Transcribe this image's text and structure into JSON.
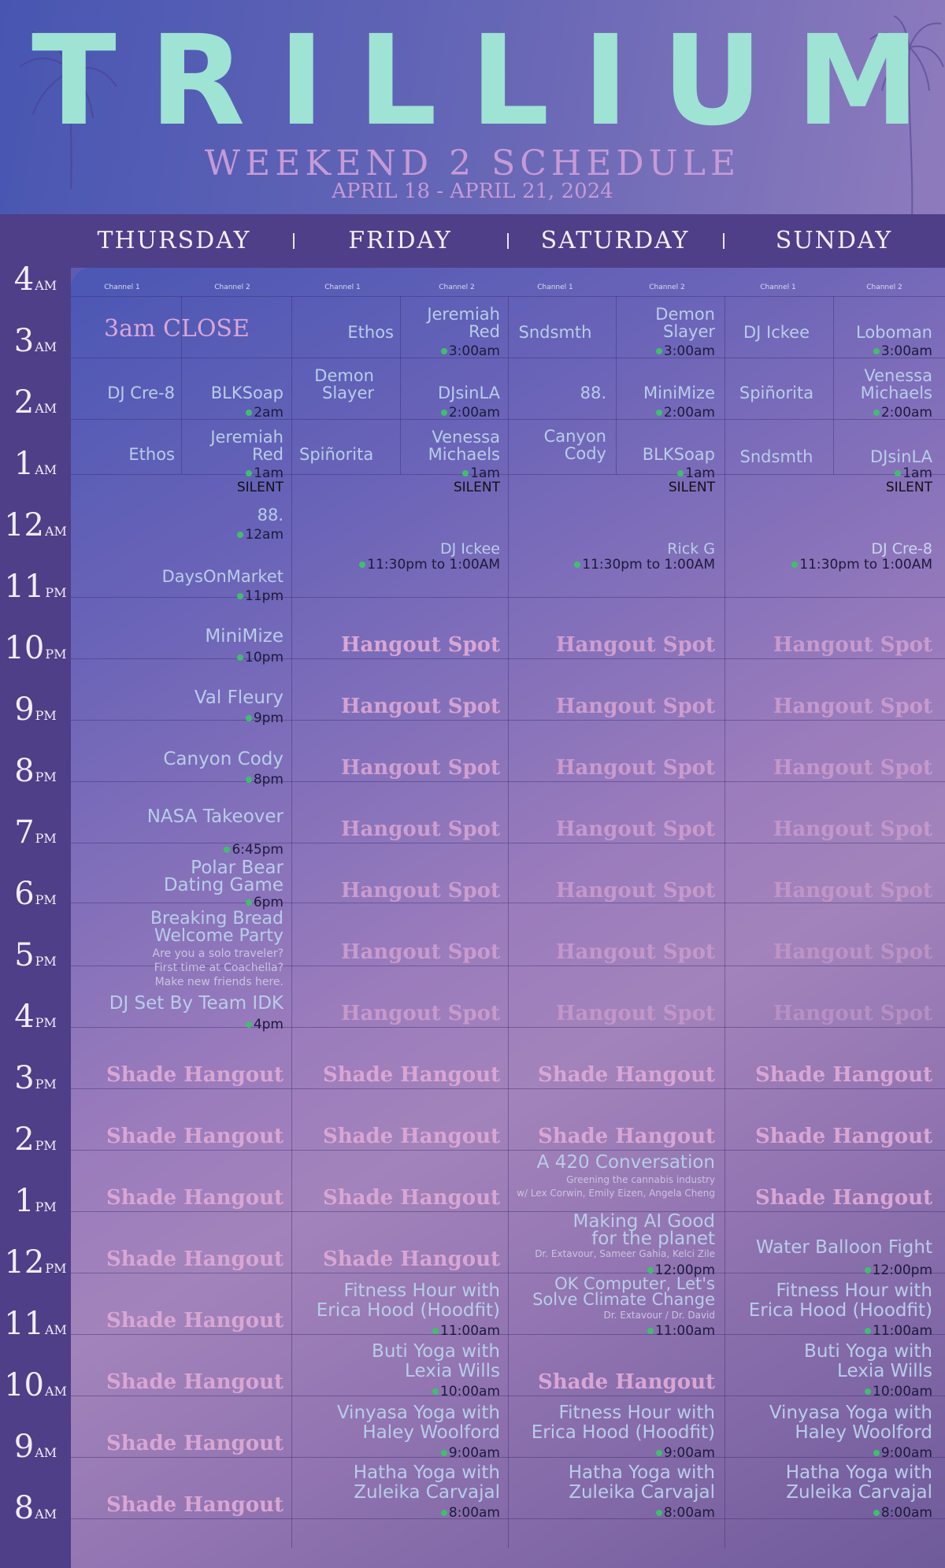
{
  "header": {
    "title": "TRILLIUM",
    "subtitle": "WEEKEND 2 SCHEDULE",
    "dates": "APRIL 18 - APRIL 21, 2024"
  },
  "days": [
    "THURSDAY",
    "FRIDAY",
    "SATURDAY",
    "SUNDAY"
  ],
  "channel_labels": [
    "Channel 1",
    "Channel 2"
  ],
  "hours": [
    {
      "n": "4",
      "ap": "AM"
    },
    {
      "n": "3",
      "ap": "AM"
    },
    {
      "n": "2",
      "ap": "AM"
    },
    {
      "n": "1",
      "ap": "AM"
    },
    {
      "n": "12",
      "ap": "AM"
    },
    {
      "n": "11",
      "ap": "PM"
    },
    {
      "n": "10",
      "ap": "PM"
    },
    {
      "n": "9",
      "ap": "PM"
    },
    {
      "n": "8",
      "ap": "PM"
    },
    {
      "n": "7",
      "ap": "PM"
    },
    {
      "n": "6",
      "ap": "PM"
    },
    {
      "n": "5",
      "ap": "PM"
    },
    {
      "n": "4",
      "ap": "PM"
    },
    {
      "n": "3",
      "ap": "PM"
    },
    {
      "n": "2",
      "ap": "PM"
    },
    {
      "n": "1",
      "ap": "PM"
    },
    {
      "n": "12",
      "ap": "PM"
    },
    {
      "n": "11",
      "ap": "AM"
    },
    {
      "n": "10",
      "ap": "AM"
    },
    {
      "n": "9",
      "ap": "AM"
    },
    {
      "n": "8",
      "ap": "AM"
    }
  ],
  "colors": {
    "accent_mint": "#9ee3d3",
    "accent_pink": "#c69ad6",
    "dot_green": "#3fbf6e",
    "header_bar": "#4e3f88"
  },
  "late_night": {
    "thursday": {
      "close_label": "3am CLOSE",
      "ch1": [
        "DJ Cre-8",
        "Ethos"
      ],
      "ch2": [
        {
          "name": "BLKSoap",
          "time": "2am"
        },
        {
          "name": "Jeremiah\nRed",
          "time": "1am"
        }
      ],
      "silent": "SILENT"
    },
    "friday": {
      "ch1": [
        "Ethos",
        "Demon\nSlayer",
        "Spiñorita"
      ],
      "ch2": [
        {
          "name": "Jeremiah\nRed",
          "time": "3:00am"
        },
        {
          "name": "DJsinLA",
          "time": "2:00am"
        },
        {
          "name": "Venessa\nMichaels",
          "time": "1am"
        }
      ],
      "silent": "SILENT"
    },
    "saturday": {
      "ch1": [
        "Sndsmth",
        "88.",
        "Canyon\nCody"
      ],
      "ch2": [
        {
          "name": "Demon\nSlayer",
          "time": "3:00am"
        },
        {
          "name": "MiniMize",
          "time": "2:00am"
        },
        {
          "name": "BLKSoap",
          "time": "1am"
        }
      ],
      "silent": "SILENT"
    },
    "sunday": {
      "ch1": [
        "DJ Ickee",
        "Spiñorita",
        "Sndsmth"
      ],
      "ch2": [
        {
          "name": "Loboman",
          "time": "3:00am"
        },
        {
          "name": "Venessa\nMichaels",
          "time": "2:00am"
        },
        {
          "name": "DJsinLA",
          "time": "1am"
        }
      ],
      "silent": "SILENT"
    }
  },
  "thursday_evening": [
    {
      "name": "88.",
      "time": "12am"
    },
    {
      "name": "DaysOnMarket",
      "time": "11pm"
    },
    {
      "name": "MiniMize",
      "time": "10pm"
    },
    {
      "name": "Val Fleury",
      "time": "9pm"
    },
    {
      "name": "Canyon Cody",
      "time": "8pm"
    },
    {
      "name": "NASA Takeover",
      "time": "6:45pm"
    },
    {
      "name": "Polar Bear\nDating Game",
      "time": "6pm"
    },
    {
      "name": "Breaking Bread\nWelcome Party",
      "note": "Are you a solo traveler?\nFirst time at Coachella?\nMake new friends here."
    },
    {
      "name": "DJ Set By Team IDK",
      "time": "4pm"
    }
  ],
  "eleven_pm": [
    {
      "name": "DJ Ickee",
      "time": "11:30pm to 1:00AM"
    },
    {
      "name": "Rick G",
      "time": "11:30pm to 1:00AM"
    },
    {
      "name": "DJ Cre-8",
      "time": "11:30pm to 1:00AM"
    }
  ],
  "hangout_spot": "Hangout Spot",
  "shade_hangout": "Shade Hangout",
  "daytime": {
    "friday": [
      {
        "name": "Fitness Hour with\nErica Hood (Hoodfit)",
        "time": "11:00am"
      },
      {
        "name": "Buti Yoga with\nLexia Wills",
        "time": "10:00am"
      },
      {
        "name": "Vinyasa Yoga with\nHaley Woolford",
        "time": "9:00am"
      },
      {
        "name": "Hatha Yoga with\nZuleika Carvajal",
        "time": "8:00am"
      }
    ],
    "saturday": [
      {
        "name": "A 420 Conversation",
        "note": "Greening the cannabis industry\nw/ Lex Corwin, Emily Eizen, Angela Cheng"
      },
      {
        "name": "Making AI Good\nfor the planet",
        "note": "Dr. Extavour, Sameer Gahia, Kelci Zile",
        "time": "12:00pm"
      },
      {
        "name": "OK Computer, Let's\nSolve Climate Change",
        "note": "Dr. Extavour / Dr. David",
        "time": "11:00am"
      },
      {
        "name": "Fitness Hour with\nErica Hood (Hoodfit)",
        "time": "9:00am"
      },
      {
        "name": "Hatha Yoga with\nZuleika Carvajal",
        "time": "8:00am"
      }
    ],
    "sunday": [
      {
        "name": "Water Balloon Fight",
        "time": "12:00pm"
      },
      {
        "name": "Fitness Hour with\nErica Hood (Hoodfit)",
        "time": "11:00am"
      },
      {
        "name": "Buti Yoga with\nLexia Wills",
        "time": "10:00am"
      },
      {
        "name": "Vinyasa Yoga with\nHaley Woolford",
        "time": "9:00am"
      },
      {
        "name": "Hatha Yoga with\nZuleika Carvajal",
        "time": "8:00am"
      }
    ]
  }
}
